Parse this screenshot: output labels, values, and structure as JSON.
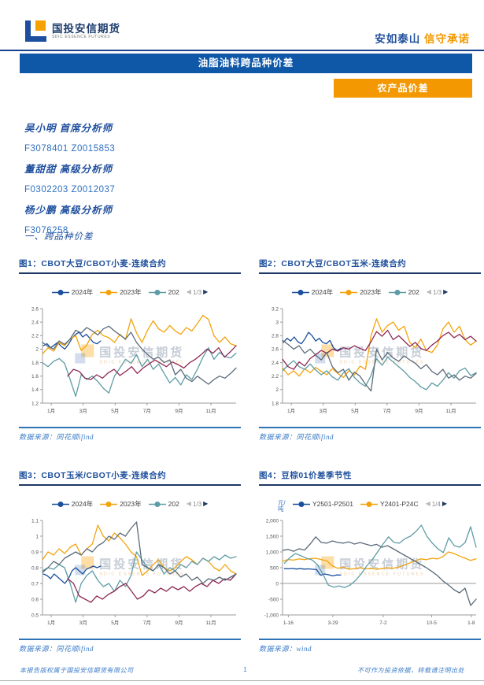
{
  "header": {
    "logo": {
      "cn": "国投安信期货",
      "en": "SDIC ESSENCE FUTURES"
    },
    "slogan": {
      "blue": "安如泰山",
      "orange": "信守承诺"
    },
    "banner_title": "油脂油料跨品种价差",
    "category_badge": "农产品价差"
  },
  "analysts": [
    {
      "name": "吴小明 首席分析师",
      "codes": "F3078401 Z0015853"
    },
    {
      "name": "董甜甜 高级分析师",
      "codes": "F0302203 Z0012037"
    },
    {
      "name": "杨少鹏 高级分析师",
      "codes": "F3076258"
    }
  ],
  "section_heading": "一、跨品种价差",
  "watermark": {
    "cn": "国投安信期货",
    "en": "SDIC ESSENCE FUTURES"
  },
  "footer": {
    "left": "本报告版权属于国投安信期货有限公司",
    "page": "1",
    "right": "不可作为投资依据，转载请注明出处"
  },
  "colors": {
    "navy": "#1b4f9c",
    "orange": "#f2a30b",
    "teal": "#5e9ca5",
    "maroon": "#8e2a55",
    "slate": "#5b6b7a",
    "banner_blue": "#0f58a8",
    "banner_orange": "#f39800"
  },
  "chart_data": [
    {
      "type": "line",
      "title": "图1：CBOT大豆/CBOT小麦-连续合约",
      "source": "数据来源：同花顺ifind",
      "ylim": [
        1.2,
        2.6
      ],
      "yticks": {
        "values": [
          1.2,
          1.4,
          1.6,
          1.8,
          2.0,
          2.2,
          2.4,
          2.6
        ],
        "labels": [
          "1.2",
          "1.4",
          "1.6",
          "1.8",
          "2",
          "2.2",
          "2.4",
          "2.6"
        ]
      },
      "xticks": {
        "pos": [
          0.045,
          0.21,
          0.375,
          0.54,
          0.705,
          0.87
        ],
        "labels": [
          "1月",
          "3月",
          "5月",
          "7月",
          "9月",
          "11月"
        ]
      },
      "legend": {
        "page": "1/3",
        "items": [
          {
            "label": "2024年",
            "color": "#1b4f9c"
          },
          {
            "label": "2023年",
            "color": "#f2a30b"
          },
          {
            "label": "202",
            "color": "#5e9ca5"
          }
        ]
      },
      "series": [
        {
          "name": "navy",
          "color": "#1b4f9c",
          "xrange": [
            0.005,
            0.3
          ],
          "y": [
            2.05,
            2.08,
            2.02,
            2.06,
            2.1,
            2.04,
            2.0,
            2.07,
            2.16,
            2.22,
            2.25,
            2.18,
            2.22,
            2.16,
            2.1,
            2.08,
            2.12
          ]
        },
        {
          "name": "orange",
          "color": "#f2a30b",
          "xrange": [
            0,
            1
          ],
          "y": [
            1.93,
            2.02,
            1.97,
            2.1,
            2.05,
            2.15,
            2.2,
            1.98,
            2.06,
            2.22,
            2.28,
            2.2,
            2.17,
            2.1,
            2.22,
            2.14,
            2.45,
            2.24,
            2.1,
            2.28,
            2.42,
            2.3,
            2.25,
            2.35,
            2.27,
            2.22,
            2.32,
            2.27,
            2.38,
            2.5,
            2.44,
            2.2,
            2.1,
            2.18,
            2.08,
            2.05
          ]
        },
        {
          "name": "teal",
          "color": "#5e9ca5",
          "xrange": [
            0,
            1
          ],
          "y": [
            1.8,
            1.74,
            1.82,
            1.86,
            1.79,
            1.55,
            1.3,
            1.62,
            1.55,
            1.6,
            1.52,
            1.42,
            1.35,
            1.6,
            1.72,
            1.85,
            1.79,
            1.92,
            1.74,
            1.85,
            1.7,
            1.78,
            1.64,
            1.5,
            1.58,
            1.47,
            1.62,
            1.55,
            1.7,
            1.88,
            2.02,
            1.85,
            1.95,
            1.89,
            1.87,
            1.94
          ]
        },
        {
          "name": "maroon",
          "color": "#8e2a55",
          "xrange": [
            0.13,
            1
          ],
          "y": [
            1.6,
            1.7,
            1.67,
            1.57,
            1.55,
            1.62,
            1.57,
            1.65,
            1.7,
            1.61,
            1.67,
            1.74,
            1.64,
            1.72,
            1.78,
            1.84,
            1.79,
            1.74,
            1.81,
            1.77,
            1.72,
            1.8,
            1.85,
            1.92,
            2.0,
            1.94,
            2.02,
            1.88,
            1.96,
            2.05
          ]
        },
        {
          "name": "slate",
          "color": "#5b6b7a",
          "xrange": [
            0,
            1
          ],
          "y": [
            2.1,
            2.04,
            2.0,
            2.12,
            2.07,
            2.15,
            2.28,
            2.24,
            2.32,
            2.27,
            2.21,
            2.3,
            2.34,
            2.27,
            2.21,
            2.15,
            2.25,
            2.1,
            2.0,
            1.92,
            1.85,
            1.88,
            1.8,
            1.84,
            1.62,
            1.7,
            1.57,
            1.52,
            1.6,
            1.54,
            1.48,
            1.55,
            1.6,
            1.57,
            1.64,
            1.72
          ]
        }
      ]
    },
    {
      "type": "line",
      "title": "图2：CBOT大豆/CBOT玉米-连续合约",
      "source": "数据来源：同花顺ifind",
      "ylim": [
        1.8,
        3.2
      ],
      "yticks": {
        "values": [
          1.8,
          2.0,
          2.2,
          2.4,
          2.6,
          2.8,
          3.0,
          3.2
        ],
        "labels": [
          "1.8",
          "2",
          "2.2",
          "2.4",
          "2.6",
          "2.8",
          "3",
          "3.2"
        ]
      },
      "xticks": {
        "pos": [
          0.045,
          0.21,
          0.375,
          0.54,
          0.705,
          0.87
        ],
        "labels": [
          "1月",
          "3月",
          "5月",
          "7月",
          "9月",
          "11月"
        ]
      },
      "legend": {
        "page": "1/3",
        "items": [
          {
            "label": "2024年",
            "color": "#1b4f9c"
          },
          {
            "label": "2023年",
            "color": "#f2a30b"
          },
          {
            "label": "202",
            "color": "#5e9ca5"
          }
        ]
      },
      "series": [
        {
          "name": "navy",
          "color": "#1b4f9c",
          "xrange": [
            0.005,
            0.3
          ],
          "y": [
            2.7,
            2.76,
            2.72,
            2.78,
            2.71,
            2.68,
            2.75,
            2.85,
            2.8,
            2.72,
            2.76,
            2.7,
            2.68,
            2.73,
            2.62,
            2.58,
            2.61
          ]
        },
        {
          "name": "orange",
          "color": "#f2a30b",
          "xrange": [
            0,
            1
          ],
          "y": [
            2.32,
            2.22,
            2.28,
            2.2,
            2.31,
            2.25,
            2.33,
            2.27,
            2.22,
            2.31,
            2.24,
            2.18,
            2.28,
            2.22,
            2.35,
            2.3,
            2.8,
            3.05,
            2.85,
            2.95,
            3.0,
            2.88,
            2.94,
            2.7,
            2.62,
            2.75,
            2.58,
            2.55,
            2.66,
            2.9,
            3.0,
            2.85,
            2.94,
            2.74,
            2.66,
            2.72
          ]
        },
        {
          "name": "teal",
          "color": "#5e9ca5",
          "xrange": [
            0,
            1
          ],
          "y": [
            2.28,
            2.36,
            2.43,
            2.34,
            2.3,
            2.38,
            2.29,
            2.22,
            2.28,
            2.19,
            2.14,
            2.25,
            2.31,
            2.18,
            2.1,
            2.05,
            2.21,
            2.46,
            2.36,
            2.48,
            2.41,
            2.34,
            2.27,
            2.18,
            2.12,
            2.04,
            2.0,
            2.1,
            2.05,
            2.14,
            2.25,
            2.17,
            2.28,
            2.32,
            2.21,
            2.25
          ]
        },
        {
          "name": "maroon",
          "color": "#8e2a55",
          "xrange": [
            0,
            1
          ],
          "y": [
            2.45,
            2.34,
            2.3,
            2.41,
            2.35,
            2.46,
            2.52,
            2.58,
            2.54,
            2.6,
            2.57,
            2.62,
            2.6,
            2.65,
            2.61,
            2.58,
            2.71,
            2.86,
            2.79,
            2.88,
            2.74,
            2.8,
            2.72,
            2.64,
            2.7,
            2.61,
            2.58,
            2.66,
            2.72,
            2.8,
            2.85,
            2.77,
            2.82,
            2.74,
            2.79,
            2.72
          ]
        },
        {
          "name": "slate",
          "color": "#5b6b7a",
          "xrange": [
            0,
            1
          ],
          "y": [
            2.73,
            2.67,
            2.6,
            2.65,
            2.54,
            2.6,
            2.51,
            2.44,
            2.55,
            2.34,
            2.25,
            2.3,
            2.14,
            2.26,
            2.2,
            2.08,
            1.98,
            2.6,
            2.44,
            2.55,
            2.47,
            2.42,
            2.5,
            2.44,
            2.39,
            2.31,
            2.37,
            2.27,
            2.22,
            2.3,
            2.17,
            2.22,
            2.14,
            2.2,
            2.17,
            2.24
          ]
        }
      ]
    },
    {
      "type": "line",
      "title": "图3：CBOT玉米/CBOT小麦-连续合约",
      "source": "数据来源：同花顺ifind",
      "ylim": [
        0.5,
        1.1
      ],
      "yticks": {
        "values": [
          0.5,
          0.6,
          0.7,
          0.8,
          0.9,
          1.0,
          1.1
        ],
        "labels": [
          "0.5",
          "0.6",
          "0.7",
          "0.8",
          "0.9",
          "1",
          "1.1"
        ]
      },
      "xticks": {
        "pos": [
          0.045,
          0.21,
          0.375,
          0.54,
          0.705,
          0.87
        ],
        "labels": [
          "1月",
          "3月",
          "5月",
          "7月",
          "9月",
          "11月"
        ]
      },
      "legend": {
        "page": "1/3",
        "items": [
          {
            "label": "2024年",
            "color": "#1b4f9c"
          },
          {
            "label": "2023年",
            "color": "#f2a30b"
          },
          {
            "label": "202",
            "color": "#5e9ca5"
          }
        ]
      },
      "series": [
        {
          "name": "navy",
          "color": "#1b4f9c",
          "xrange": [
            0.005,
            0.3
          ],
          "y": [
            0.76,
            0.75,
            0.73,
            0.76,
            0.74,
            0.72,
            0.7,
            0.73,
            0.78,
            0.8,
            0.78,
            0.76,
            0.79,
            0.8,
            0.81,
            0.8,
            0.81
          ]
        },
        {
          "name": "orange",
          "color": "#f2a30b",
          "xrange": [
            0,
            1
          ],
          "y": [
            0.85,
            0.9,
            0.88,
            0.92,
            0.89,
            0.93,
            0.95,
            0.88,
            0.92,
            0.95,
            1.07,
            1.0,
            0.97,
            1.02,
            0.99,
            0.95,
            0.9,
            0.87,
            0.75,
            0.78,
            0.82,
            0.85,
            0.8,
            0.78,
            0.8,
            0.84,
            0.87,
            0.85,
            0.82,
            0.86,
            0.84,
            0.8,
            0.78,
            0.82,
            0.78,
            0.76
          ]
        },
        {
          "name": "teal",
          "color": "#5e9ca5",
          "xrange": [
            0,
            1
          ],
          "y": [
            0.78,
            0.8,
            0.79,
            0.82,
            0.8,
            0.7,
            0.58,
            0.7,
            0.75,
            0.78,
            0.72,
            0.68,
            0.7,
            0.65,
            0.72,
            0.68,
            0.75,
            0.9,
            0.85,
            0.8,
            0.78,
            0.82,
            0.76,
            0.8,
            0.78,
            0.82,
            0.8,
            0.84,
            0.82,
            0.86,
            0.84,
            0.87,
            0.85,
            0.88,
            0.86,
            0.87
          ]
        },
        {
          "name": "maroon",
          "color": "#8e2a55",
          "xrange": [
            0.13,
            1
          ],
          "y": [
            0.73,
            0.7,
            0.62,
            0.6,
            0.58,
            0.62,
            0.6,
            0.63,
            0.65,
            0.68,
            0.7,
            0.65,
            0.6,
            0.62,
            0.66,
            0.64,
            0.67,
            0.65,
            0.68,
            0.66,
            0.68,
            0.65,
            0.68,
            0.7,
            0.68,
            0.72,
            0.7,
            0.73,
            0.72,
            0.76
          ]
        },
        {
          "name": "slate",
          "color": "#5b6b7a",
          "xrange": [
            0,
            1
          ],
          "y": [
            0.77,
            0.8,
            0.84,
            0.82,
            0.86,
            0.88,
            0.9,
            0.88,
            0.92,
            0.9,
            0.94,
            0.96,
            1.0,
            0.98,
            1.02,
            1.0,
            1.05,
            1.09,
            0.82,
            0.8,
            0.78,
            0.82,
            0.8,
            0.76,
            0.78,
            0.74,
            0.76,
            0.72,
            0.74,
            0.7,
            0.73,
            0.72,
            0.74,
            0.72,
            0.74,
            0.76
          ]
        }
      ]
    },
    {
      "type": "line",
      "title": "图4：豆棕01价差季节性",
      "source": "数据来源：wind",
      "ylabel": "元/吨",
      "zero_line": true,
      "ylim": [
        -1000,
        2000
      ],
      "yticks": {
        "values": [
          -1000,
          -500,
          0,
          500,
          1000,
          1500,
          2000
        ],
        "labels": [
          "-1,000",
          "-500",
          "0",
          "500",
          "1,000",
          "1,500",
          "2,000"
        ]
      },
      "xticks": {
        "pos": [
          0.03,
          0.26,
          0.52,
          0.77,
          0.975
        ],
        "labels": [
          "1-16",
          "3-29",
          "7-2",
          "10-5",
          "1-8"
        ]
      },
      "legend": {
        "page": "1/4",
        "items": [
          {
            "label": "Y2501-P2501",
            "color": "#1b4f9c"
          },
          {
            "label": "Y2401-P24C",
            "color": "#f2a30b"
          }
        ]
      },
      "series": [
        {
          "name": "navy",
          "color": "#1b4f9c",
          "xrange": [
            0.01,
            0.3
          ],
          "y": [
            470,
            465,
            475,
            458,
            470,
            455,
            462,
            450,
            440,
            260,
            300,
            275,
            240,
            270,
            265
          ]
        },
        {
          "name": "orange",
          "color": "#f2a30b",
          "xrange": [
            0,
            1
          ],
          "y": [
            700,
            760,
            740,
            780,
            755,
            790,
            800,
            755,
            720,
            560,
            480,
            520,
            450,
            470,
            500,
            460,
            480,
            450,
            470,
            500,
            480,
            520,
            580,
            650,
            720,
            780,
            755,
            800,
            780,
            850,
            1000,
            950,
            870,
            800,
            730,
            780
          ]
        },
        {
          "name": "teal",
          "color": "#5e9ca5",
          "xrange": [
            0.01,
            1
          ],
          "y": [
            640,
            820,
            950,
            880,
            800,
            750,
            600,
            300,
            -50,
            -120,
            -80,
            -130,
            -50,
            100,
            300,
            550,
            750,
            1000,
            1250,
            1480,
            1300,
            1280,
            1420,
            1500,
            1650,
            1850,
            1500,
            1280,
            1100,
            980,
            1450,
            1200,
            1150,
            1300,
            1800,
            1150
          ]
        },
        {
          "name": "slate",
          "color": "#5b6b7a",
          "xrange": [
            0,
            1
          ],
          "y": [
            1050,
            1080,
            1020,
            1100,
            1060,
            1250,
            1480,
            1300,
            1280,
            1350,
            1300,
            1280,
            1320,
            1250,
            1300,
            1250,
            1200,
            1240,
            1150,
            1200,
            1100,
            1000,
            900,
            800,
            700,
            600,
            500,
            380,
            250,
            80,
            -50,
            -200,
            -300,
            -150,
            -700,
            -500
          ]
        }
      ]
    }
  ]
}
